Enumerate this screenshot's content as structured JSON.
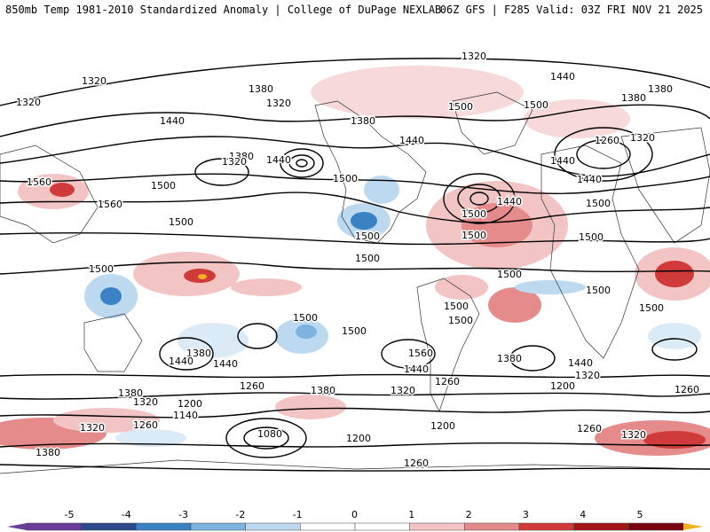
{
  "header": {
    "left_title": "850mb Temp 1981-2010 Standardized Anomaly | College of DuPage NEXLAB",
    "right_title": "06Z GFS | F285 Valid: 03Z FRI NOV 21 2025"
  },
  "colorbar": {
    "ticks": [
      "-5",
      "-4",
      "-3",
      "-2",
      "-1",
      "0",
      "1",
      "2",
      "3",
      "4",
      "5"
    ],
    "colors": [
      "#6a3d9a",
      "#2b4a8c",
      "#3b82c4",
      "#7cb3e0",
      "#bcd9f0",
      "#ffffff",
      "#ffffff",
      "#f3c4c4",
      "#e58b8b",
      "#d13a3a",
      "#a31515",
      "#7a0010"
    ],
    "end_low": "#6a3d9a",
    "end_high": "#f0b020"
  },
  "contour_labels": [
    {
      "text": "1320"
    },
    {
      "text": "1320"
    },
    {
      "text": "1320"
    },
    {
      "text": "1320"
    },
    {
      "text": "1380"
    },
    {
      "text": "1380"
    },
    {
      "text": "1380"
    },
    {
      "text": "1440"
    },
    {
      "text": "1440"
    },
    {
      "text": "1440"
    },
    {
      "text": "1320"
    },
    {
      "text": "1440"
    },
    {
      "text": "1500"
    },
    {
      "text": "1500"
    },
    {
      "text": "1500"
    },
    {
      "text": "1560"
    },
    {
      "text": "1560"
    },
    {
      "text": "1500"
    },
    {
      "text": "1500"
    },
    {
      "text": "1440"
    },
    {
      "text": "1500"
    },
    {
      "text": "1440"
    },
    {
      "text": "1380"
    },
    {
      "text": "1260"
    },
    {
      "text": "1320"
    },
    {
      "text": "1440"
    },
    {
      "text": "1500"
    },
    {
      "text": "1500"
    },
    {
      "text": "1500"
    },
    {
      "text": "1500"
    },
    {
      "text": "1500"
    },
    {
      "text": "1500"
    },
    {
      "text": "1500"
    },
    {
      "text": "1500"
    },
    {
      "text": "1500"
    },
    {
      "text": "1500"
    },
    {
      "text": "1500"
    },
    {
      "text": "1500"
    },
    {
      "text": "1500"
    },
    {
      "text": "1380"
    },
    {
      "text": "1440"
    },
    {
      "text": "1440"
    },
    {
      "text": "1560"
    },
    {
      "text": "1440"
    },
    {
      "text": "1380"
    },
    {
      "text": "1440"
    },
    {
      "text": "1320"
    },
    {
      "text": "1260"
    },
    {
      "text": "1380"
    },
    {
      "text": "1320"
    },
    {
      "text": "1260"
    },
    {
      "text": "1200"
    },
    {
      "text": "1260"
    },
    {
      "text": "1380"
    },
    {
      "text": "1320"
    },
    {
      "text": "1200"
    },
    {
      "text": "1140"
    },
    {
      "text": "1080"
    },
    {
      "text": "1200"
    },
    {
      "text": "1200"
    },
    {
      "text": "1320"
    },
    {
      "text": "1260"
    },
    {
      "text": "1380"
    },
    {
      "text": "1260"
    },
    {
      "text": "1320"
    },
    {
      "text": "1260"
    },
    {
      "text": "1380"
    }
  ]
}
